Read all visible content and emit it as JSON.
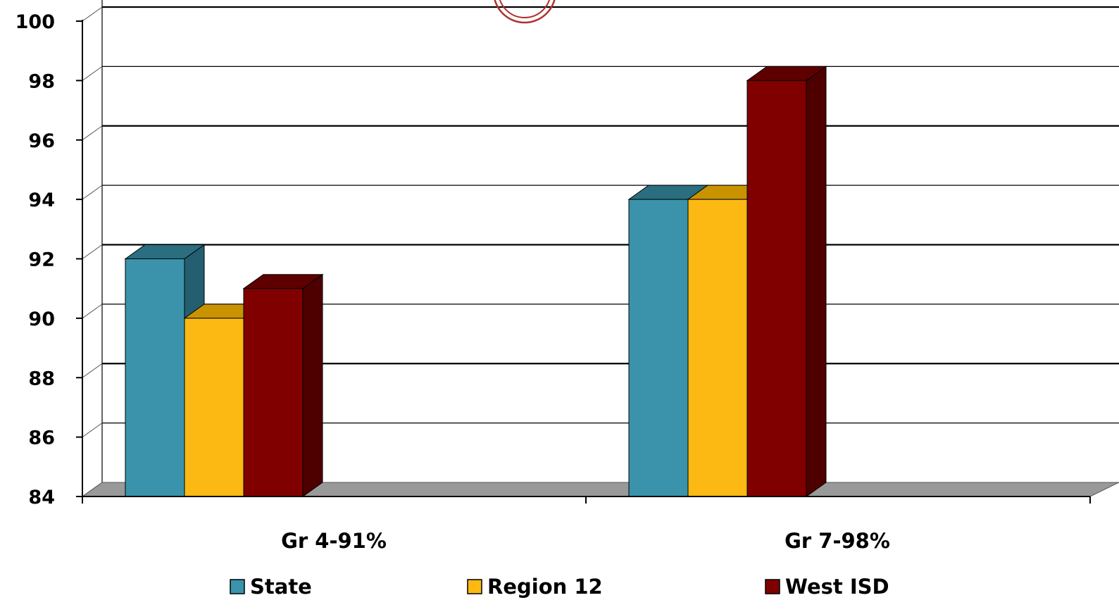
{
  "chart_data": {
    "type": "bar",
    "categories": [
      "Gr 4-91%",
      "Gr 7-98%"
    ],
    "series": [
      {
        "name": "State",
        "values": [
          92,
          94
        ]
      },
      {
        "name": "Region 12",
        "values": [
          90,
          94
        ]
      },
      {
        "name": "West ISD",
        "values": [
          91,
          98
        ]
      }
    ],
    "ylim": [
      84,
      100
    ],
    "yticks": [
      "84",
      "86",
      "88",
      "90",
      "92",
      "94",
      "96",
      "98",
      "100"
    ],
    "grid": true,
    "legend": "bottom",
    "colors": {
      "State": {
        "front": "#3A93AA",
        "top": "#2A6E80",
        "side": "#235F70"
      },
      "Region 12": {
        "front": "#FDB913",
        "top": "#C99300",
        "side": "#B88600"
      },
      "West ISD": {
        "front": "#800000",
        "top": "#5E0000",
        "side": "#4E0000"
      }
    },
    "floor_color": "#999999",
    "stamp_color": "#B03030"
  }
}
